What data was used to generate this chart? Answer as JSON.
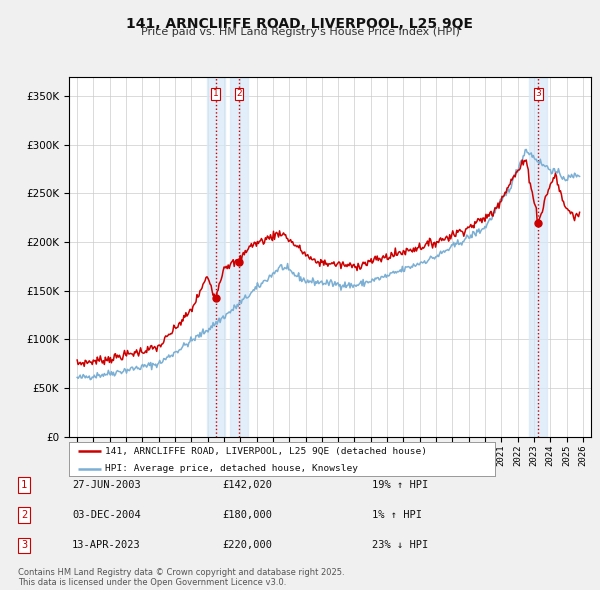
{
  "title": "141, ARNCLIFFE ROAD, LIVERPOOL, L25 9QE",
  "subtitle": "Price paid vs. HM Land Registry's House Price Index (HPI)",
  "legend_line1": "141, ARNCLIFFE ROAD, LIVERPOOL, L25 9QE (detached house)",
  "legend_line2": "HPI: Average price, detached house, Knowsley",
  "footer": "Contains HM Land Registry data © Crown copyright and database right 2025.\nThis data is licensed under the Open Government Licence v3.0.",
  "transactions": [
    {
      "num": 1,
      "date": "27-JUN-2003",
      "price": 142020,
      "pct": "19%",
      "dir": "↑"
    },
    {
      "num": 2,
      "date": "03-DEC-2004",
      "price": 180000,
      "pct": "1%",
      "dir": "↑"
    },
    {
      "num": 3,
      "date": "13-APR-2023",
      "price": 220000,
      "pct": "23%",
      "dir": "↓"
    }
  ],
  "transaction_dates_decimal": [
    2003.484,
    2004.921,
    2023.278
  ],
  "transaction_prices": [
    142020,
    180000,
    220000
  ],
  "hpi_color": "#7bafd4",
  "price_color": "#cc0000",
  "vline_color": "#cc0000",
  "shade_color": "#d6e8f7",
  "ylim": [
    0,
    370000
  ],
  "yticks": [
    0,
    50000,
    100000,
    150000,
    200000,
    250000,
    300000,
    350000
  ],
  "xlim_start": 1994.5,
  "xlim_end": 2026.5,
  "xticks": [
    1995,
    1996,
    1997,
    1998,
    1999,
    2000,
    2001,
    2002,
    2003,
    2004,
    2005,
    2006,
    2007,
    2008,
    2009,
    2010,
    2011,
    2012,
    2013,
    2014,
    2015,
    2016,
    2017,
    2018,
    2019,
    2020,
    2021,
    2022,
    2023,
    2024,
    2025,
    2026
  ],
  "background_color": "#f0f0f0",
  "plot_background": "#ffffff",
  "grid_color": "#cccccc"
}
